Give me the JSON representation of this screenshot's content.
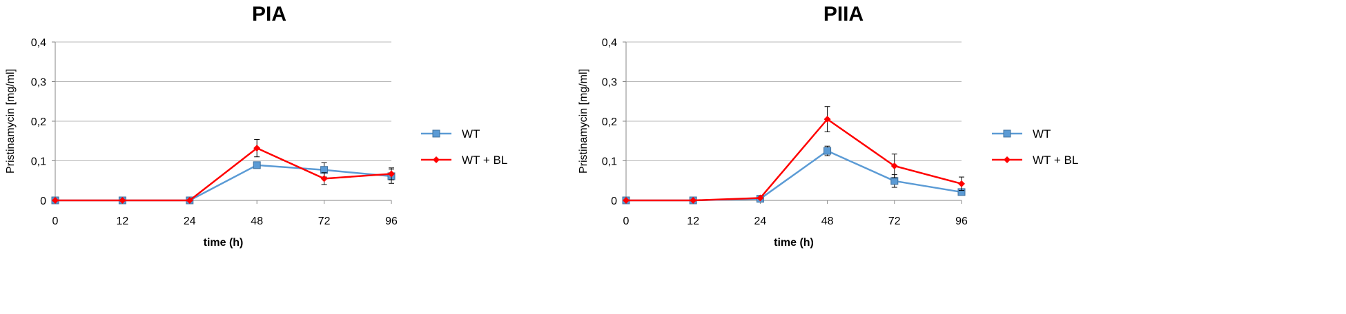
{
  "colors": {
    "wt": "#5b9bd5",
    "wt_bl": "#ff0000",
    "grid": "#b8b8b8",
    "axis": "#868686",
    "text": "#000000",
    "error_bar": "#000000"
  },
  "chart_data": [
    {
      "type": "line",
      "title": "PIA",
      "xlabel": "time (h)",
      "ylabel": "Pristinamycin [mg/ml]",
      "categories": [
        "0",
        "12",
        "24",
        "48",
        "72",
        "96"
      ],
      "ylim": [
        0,
        0.4
      ],
      "yticks": [
        "0",
        "0,1",
        "0,2",
        "0,3",
        "0,4"
      ],
      "ytick_values": [
        0,
        0.1,
        0.2,
        0.3,
        0.4
      ],
      "grid": true,
      "legend_position": "right",
      "series": [
        {
          "name": "WT",
          "color": "#5b9bd5",
          "marker": "square",
          "values": [
            0,
            0,
            0,
            0.089,
            0.077,
            0.061
          ],
          "errors": [
            0,
            0,
            0,
            0,
            0.018,
            0.018
          ]
        },
        {
          "name": "WT + BL",
          "color": "#ff0000",
          "marker": "diamond",
          "values": [
            0,
            0,
            0,
            0.132,
            0.055,
            0.067
          ],
          "errors": [
            0,
            0,
            0,
            0.022,
            0.015,
            0.015
          ]
        }
      ]
    },
    {
      "type": "line",
      "title": "PIIA",
      "xlabel": "time (h)",
      "ylabel": "Pristinamycin [mg/ml]",
      "categories": [
        "0",
        "12",
        "24",
        "48",
        "72",
        "96"
      ],
      "ylim": [
        0,
        0.4
      ],
      "yticks": [
        "0",
        "0,1",
        "0,2",
        "0,3",
        "0,4"
      ],
      "ytick_values": [
        0,
        0.1,
        0.2,
        0.3,
        0.4
      ],
      "grid": true,
      "legend_position": "right",
      "series": [
        {
          "name": "WT",
          "color": "#5b9bd5",
          "marker": "square",
          "values": [
            0,
            0,
            0.004,
            0.125,
            0.049,
            0.021
          ],
          "errors": [
            0,
            0,
            0,
            0.012,
            0.016,
            0
          ]
        },
        {
          "name": "WT + BL",
          "color": "#ff0000",
          "marker": "diamond",
          "values": [
            0,
            0,
            0.006,
            0.205,
            0.087,
            0.042
          ],
          "errors": [
            0,
            0,
            0,
            0.032,
            0.03,
            0.017
          ]
        }
      ]
    }
  ]
}
